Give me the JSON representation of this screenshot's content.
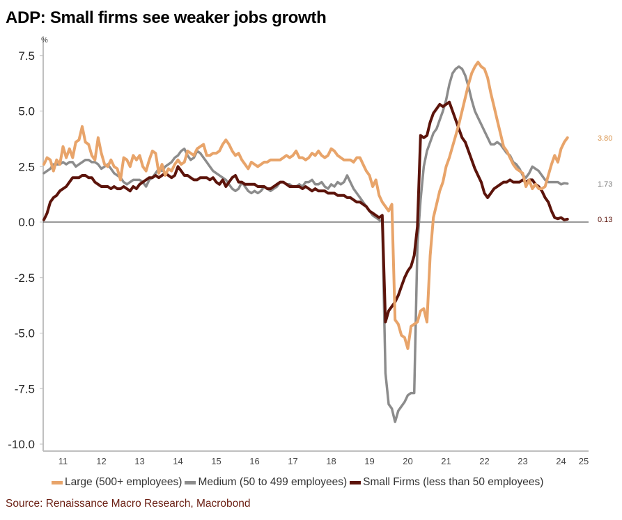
{
  "title": "ADP: Small firms see weaker jobs growth",
  "source": "Source: Renaissance Macro Research, Macrobond",
  "chart_data": {
    "type": "line",
    "title": "ADP: Small firms see weaker jobs growth",
    "ylabel": "%",
    "xlabel": "",
    "ylim": [
      -10.5,
      8.0
    ],
    "yticks": [
      7.5,
      5.0,
      2.5,
      0.0,
      -2.5,
      -5.0,
      -7.5,
      -10.0
    ],
    "ytick_labels": [
      "7.5",
      "5.0",
      "2.5",
      "0.0",
      "-2.5",
      "-5.0",
      "-7.5",
      "-10.0"
    ],
    "xlim": [
      2011.0,
      2025.2
    ],
    "xticks": [
      "11",
      "12",
      "13",
      "14",
      "15",
      "16",
      "17",
      "18",
      "19",
      "20",
      "21",
      "22",
      "23",
      "24",
      "25"
    ],
    "x_start": "2011-01",
    "frequency": "monthly",
    "zero_line": true,
    "grid": false,
    "legend_position": "bottom",
    "series": [
      {
        "name": "Large (500+ employees)",
        "color": "#E8A46A",
        "end_label": "3.80",
        "values": [
          2.6,
          2.9,
          2.8,
          2.3,
          2.8,
          2.6,
          3.4,
          2.9,
          3.3,
          2.9,
          3.6,
          3.7,
          4.3,
          3.6,
          3.5,
          3.0,
          2.8,
          3.8,
          3.1,
          2.6,
          2.5,
          2.8,
          2.5,
          2.4,
          1.9,
          2.9,
          2.8,
          2.5,
          3.0,
          2.8,
          3.0,
          2.5,
          2.3,
          2.8,
          3.2,
          3.1,
          2.2,
          2.6,
          2.1,
          2.4,
          2.3,
          2.6,
          2.8,
          2.6,
          2.7,
          3.2,
          3.1,
          3.0,
          3.3,
          3.4,
          3.5,
          3.0,
          3.0,
          3.1,
          3.1,
          3.2,
          3.5,
          3.7,
          3.5,
          3.2,
          3.0,
          3.1,
          2.8,
          2.6,
          2.4,
          2.7,
          2.6,
          2.5,
          2.6,
          2.7,
          2.7,
          2.8,
          2.8,
          2.8,
          2.8,
          2.9,
          3.0,
          2.9,
          3.0,
          3.2,
          2.9,
          2.9,
          2.8,
          2.9,
          3.1,
          3.0,
          3.2,
          3.0,
          2.9,
          3.0,
          3.3,
          3.2,
          3.0,
          2.9,
          2.8,
          2.8,
          2.8,
          2.7,
          2.9,
          2.9,
          2.6,
          2.3,
          2.1,
          1.6,
          1.9,
          1.2,
          0.9,
          0.7,
          0.5,
          0.8,
          -4.4,
          -4.6,
          -5.1,
          -5.2,
          -5.7,
          -4.7,
          -4.6,
          -4.5,
          -4.0,
          -3.9,
          -4.5,
          -1.5,
          0.2,
          0.8,
          1.4,
          1.8,
          2.5,
          2.9,
          3.4,
          3.9,
          4.4,
          5.0,
          5.6,
          6.2,
          6.7,
          7.0,
          7.2,
          7.0,
          6.9,
          6.5,
          5.8,
          5.2,
          4.6,
          4.0,
          3.4,
          3.2,
          2.9,
          2.6,
          2.4,
          2.3,
          2.2,
          1.6,
          1.9,
          1.5,
          1.7,
          1.5,
          1.5,
          1.6,
          2.1,
          2.6,
          3.0,
          2.7,
          3.3,
          3.6,
          3.8
        ]
      },
      {
        "name": "Medium (50 to 499 employees)",
        "color": "#8C8C8C",
        "end_label": "1.73",
        "values": [
          2.2,
          2.3,
          2.4,
          2.6,
          2.6,
          2.6,
          2.7,
          2.6,
          2.7,
          2.7,
          2.5,
          2.6,
          2.7,
          2.8,
          2.8,
          2.7,
          2.7,
          2.6,
          2.4,
          2.5,
          2.6,
          2.4,
          2.2,
          2.1,
          2.0,
          1.8,
          1.7,
          1.8,
          1.9,
          1.9,
          1.9,
          1.8,
          1.6,
          1.9,
          2.0,
          2.2,
          2.4,
          2.3,
          2.5,
          2.6,
          2.7,
          2.9,
          3.0,
          3.2,
          3.3,
          3.0,
          2.8,
          2.9,
          3.2,
          3.1,
          2.9,
          2.7,
          2.5,
          2.3,
          2.2,
          2.1,
          2.0,
          1.9,
          1.7,
          1.5,
          1.4,
          1.5,
          1.8,
          1.6,
          1.4,
          1.3,
          1.4,
          1.3,
          1.4,
          1.6,
          1.5,
          1.4,
          1.5,
          1.6,
          1.8,
          1.8,
          1.7,
          1.7,
          1.6,
          1.6,
          1.7,
          1.6,
          1.8,
          1.8,
          1.9,
          1.7,
          1.7,
          1.8,
          1.6,
          1.5,
          1.7,
          1.6,
          1.8,
          1.7,
          1.8,
          2.1,
          1.8,
          1.5,
          1.3,
          1.1,
          0.9,
          0.7,
          0.5,
          0.3,
          0.2,
          0.1,
          0.0,
          -6.8,
          -8.2,
          -8.4,
          -9.0,
          -8.5,
          -8.3,
          -8.1,
          -7.8,
          -7.7,
          -7.7,
          -1.0,
          1.0,
          2.5,
          3.2,
          3.6,
          4.0,
          4.2,
          4.6,
          5.0,
          5.5,
          6.2,
          6.7,
          6.9,
          7.0,
          6.9,
          6.6,
          6.1,
          5.5,
          5.0,
          4.7,
          4.4,
          4.1,
          3.8,
          3.5,
          3.5,
          3.6,
          3.5,
          3.3,
          3.1,
          3.0,
          2.7,
          2.6,
          2.4,
          2.1,
          2.0,
          2.2,
          2.5,
          2.4,
          2.3,
          2.1,
          1.9,
          1.8,
          1.8,
          1.8,
          1.8,
          1.7,
          1.75,
          1.73
        ]
      },
      {
        "name": "Small Firms (less than 50 employees)",
        "color": "#5C140B",
        "end_label": "0.13",
        "values": [
          0.1,
          0.4,
          0.9,
          1.1,
          1.2,
          1.4,
          1.5,
          1.6,
          1.8,
          2.0,
          2.0,
          2.0,
          2.1,
          2.1,
          2.0,
          2.0,
          1.8,
          1.7,
          1.6,
          1.6,
          1.6,
          1.5,
          1.6,
          1.5,
          1.5,
          1.6,
          1.5,
          1.4,
          1.6,
          1.5,
          1.7,
          1.8,
          1.9,
          2.0,
          2.0,
          2.1,
          2.0,
          2.1,
          2.2,
          2.1,
          2.0,
          2.1,
          2.5,
          2.3,
          2.1,
          2.1,
          2.0,
          1.9,
          1.9,
          2.0,
          2.0,
          2.0,
          1.9,
          2.0,
          1.8,
          1.7,
          1.9,
          1.6,
          1.8,
          2.0,
          2.1,
          1.8,
          1.8,
          1.7,
          1.7,
          1.7,
          1.7,
          1.6,
          1.6,
          1.6,
          1.5,
          1.5,
          1.6,
          1.7,
          1.8,
          1.8,
          1.7,
          1.6,
          1.6,
          1.6,
          1.6,
          1.5,
          1.6,
          1.5,
          1.4,
          1.5,
          1.4,
          1.4,
          1.4,
          1.3,
          1.3,
          1.3,
          1.2,
          1.2,
          1.2,
          1.1,
          1.1,
          1.0,
          0.9,
          0.9,
          0.8,
          0.7,
          0.5,
          0.4,
          0.3,
          0.2,
          0.3,
          -4.5,
          -4.0,
          -3.8,
          -3.6,
          -3.3,
          -2.9,
          -2.5,
          -2.2,
          -2.0,
          -1.5,
          -0.2,
          3.9,
          3.8,
          3.9,
          4.5,
          4.9,
          5.1,
          5.3,
          5.2,
          5.3,
          5.4,
          5.0,
          4.6,
          4.2,
          3.8,
          3.6,
          3.2,
          2.8,
          2.4,
          2.1,
          1.8,
          1.3,
          1.1,
          1.3,
          1.5,
          1.6,
          1.7,
          1.8,
          1.8,
          1.9,
          1.8,
          1.8,
          1.8,
          1.9,
          1.8,
          1.9,
          1.9,
          1.7,
          1.6,
          1.4,
          1.1,
          0.9,
          0.5,
          0.2,
          0.15,
          0.2,
          0.1,
          0.13
        ]
      }
    ]
  },
  "legend": [
    {
      "label": "Large (500+ employees)",
      "color": "#E8A46A"
    },
    {
      "label": "Medium (50 to 499 employees)",
      "color": "#8C8C8C"
    },
    {
      "label": "Small Firms (less than 50 employees)",
      "color": "#5C140B"
    }
  ]
}
